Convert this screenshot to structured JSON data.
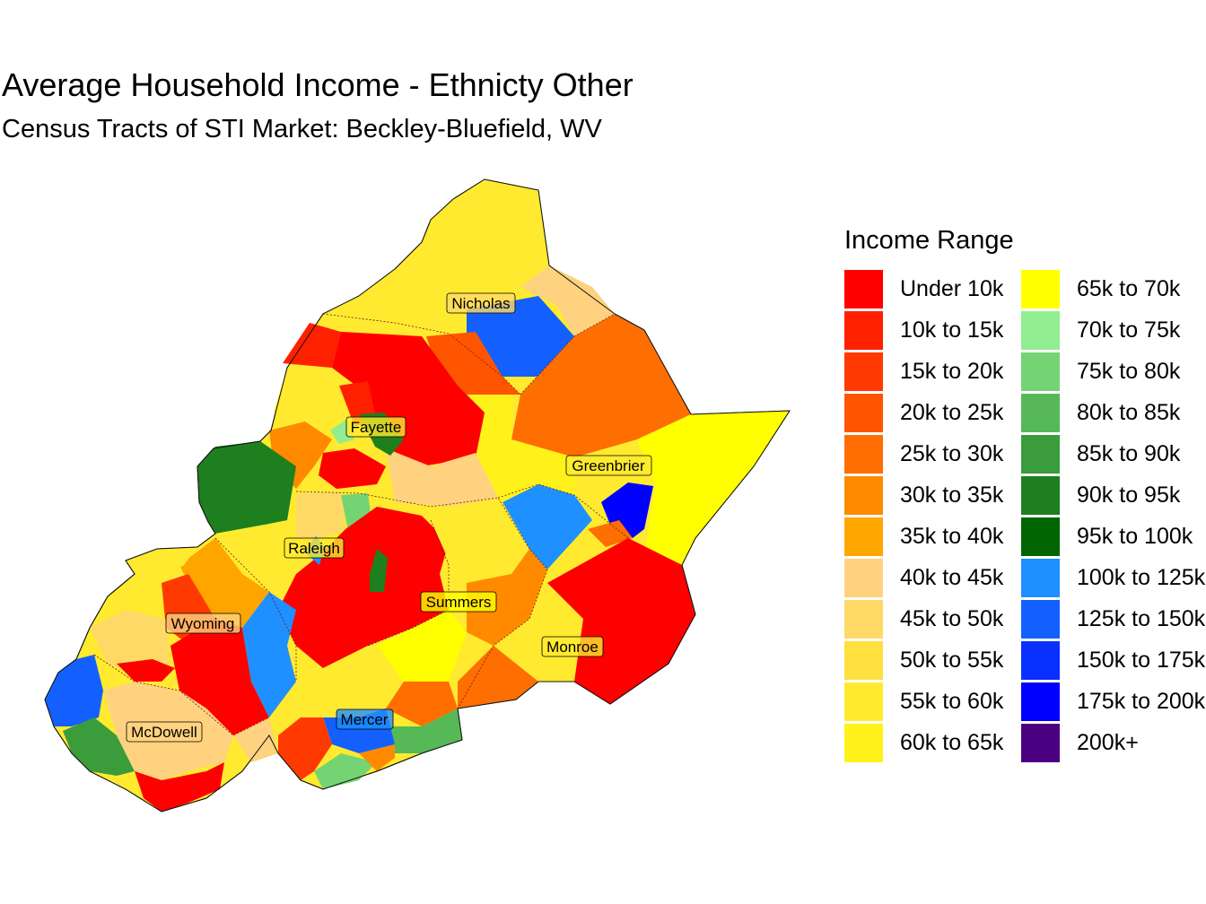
{
  "title": "Average Household Income - Ethnicty Other",
  "subtitle": "Census Tracts of STI Market: Beckley-Bluefield, WV",
  "legend": {
    "title": "Income Range",
    "items": [
      {
        "label": "Under 10k",
        "color": "#FF0000"
      },
      {
        "label": "10k to 15k",
        "color": "#FF2000"
      },
      {
        "label": "15k to 20k",
        "color": "#FF3A00"
      },
      {
        "label": "20k to 25k",
        "color": "#FF5500"
      },
      {
        "label": "25k to 30k",
        "color": "#FF6E00"
      },
      {
        "label": "30k to 35k",
        "color": "#FF8A00"
      },
      {
        "label": "35k to 40k",
        "color": "#FFA500"
      },
      {
        "label": "40k to 45k",
        "color": "#FFD27F"
      },
      {
        "label": "45k to 50k",
        "color": "#FFD966"
      },
      {
        "label": "50k to 55k",
        "color": "#FFE03F"
      },
      {
        "label": "55k to 60k",
        "color": "#FFEA30"
      },
      {
        "label": "60k to 65k",
        "color": "#FFF21A"
      },
      {
        "label": "65k to 70k",
        "color": "#FFFF00"
      },
      {
        "label": "70k to 75k",
        "color": "#90EE90"
      },
      {
        "label": "75k to 80k",
        "color": "#74D474"
      },
      {
        "label": "80k to 85k",
        "color": "#57B857"
      },
      {
        "label": "85k to 90k",
        "color": "#3A9C3A"
      },
      {
        "label": "90k to 95k",
        "color": "#1E7F1E"
      },
      {
        "label": "95k to 100k",
        "color": "#006400"
      },
      {
        "label": "100k to 125k",
        "color": "#1E90FF"
      },
      {
        "label": "125k to 150k",
        "color": "#1460FF"
      },
      {
        "label": "150k to 175k",
        "color": "#0A30FF"
      },
      {
        "label": "175k to 200k",
        "color": "#0000FF"
      },
      {
        "label": "200k+",
        "color": "#4B0082"
      }
    ]
  },
  "counties": [
    {
      "name": "Nicholas"
    },
    {
      "name": "Fayette"
    },
    {
      "name": "Greenbrier"
    },
    {
      "name": "Raleigh"
    },
    {
      "name": "Summers"
    },
    {
      "name": "Wyoming"
    },
    {
      "name": "Monroe"
    },
    {
      "name": "Mercer"
    },
    {
      "name": "McDowell"
    }
  ]
}
